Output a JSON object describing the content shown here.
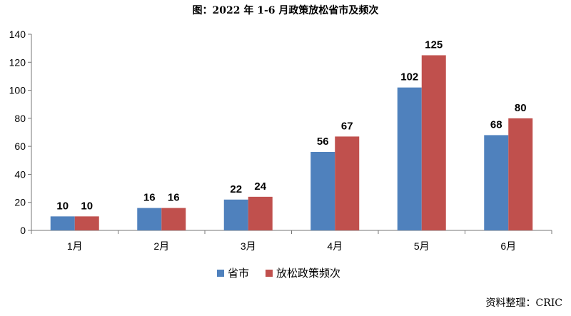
{
  "title": "图：2022 年 1-6 月政策放松省市及频次",
  "source": "资料整理：CRIC",
  "chart_data": {
    "type": "bar",
    "title": "图：2022 年 1-6 月政策放松省市及频次",
    "categories": [
      "1月",
      "2月",
      "3月",
      "4月",
      "5月",
      "6月"
    ],
    "series": [
      {
        "name": "省市",
        "values": [
          10,
          16,
          22,
          56,
          102,
          68
        ],
        "color": "#4F81BD"
      },
      {
        "name": "放松政策频次",
        "values": [
          10,
          16,
          24,
          67,
          125,
          80
        ],
        "color": "#C0504D"
      }
    ],
    "ylim": [
      0,
      140
    ],
    "yticks": [
      0,
      20,
      40,
      60,
      80,
      100,
      120,
      140
    ],
    "xlabel": "",
    "ylabel": "",
    "grid": false,
    "legend_position": "bottom-center",
    "data_labels": true
  }
}
